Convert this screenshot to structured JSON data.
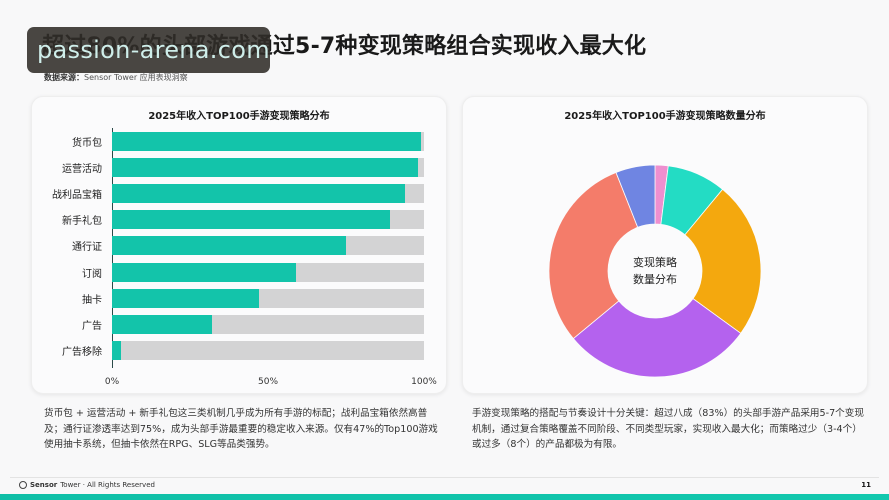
{
  "header": {
    "title": "超过80%的头部游戏通过5-7种变现策略组合实现收入最大化",
    "source_label": "数据来源：",
    "source_value": "Sensor Tower 应用表现洞察"
  },
  "watermark": {
    "text": "passion-arena.com"
  },
  "colors": {
    "bar_fill": "#13c4aa",
    "bar_bg": "#d3d3d4",
    "accent_strip": "#12c8ae"
  },
  "left_card": {
    "title": "2025年收入TOP100手游变现策略分布",
    "ticks": [
      "0%",
      "50%",
      "100%"
    ],
    "description": "货币包 + 运营活动 + 新手礼包这三类机制几乎成为所有手游的标配；战利品宝箱依然高普及；通行证渗透率达到75%，成为头部手游最重要的稳定收入来源。仅有47%的Top100游戏使用抽卡系统，但抽卡依然在RPG、SLG等品类强势。"
  },
  "right_card": {
    "title": "2025年收入TOP100手游变现策略数量分布",
    "center_line1": "变现策略",
    "center_line2": "数量分布",
    "description": "手游变现策略的搭配与节奏设计十分关键：超过八成（83%）的头部手游产品采用5-7个变现机制，通过复合策略覆盖不同阶段、不同类型玩家，实现收入最大化；而策略过少（3-4个）或过多（8个）的产品都极为有限。"
  },
  "footer": {
    "brand": "Sensor",
    "brand_rest": "Tower · All Rights Reserved",
    "page": "11"
  },
  "chart_data": [
    {
      "type": "bar",
      "orientation": "horizontal",
      "title": "2025年收入TOP100手游变现策略分布",
      "categories": [
        "货币包",
        "运营活动",
        "战利品宝箱",
        "新手礼包",
        "通行证",
        "订阅",
        "抽卡",
        "广告",
        "广告移除"
      ],
      "values": [
        99,
        98,
        94,
        89,
        75,
        59,
        47,
        32,
        3
      ],
      "unit": "%",
      "xlim": [
        0,
        100
      ],
      "xticks": [
        "0%",
        "50%",
        "100%"
      ],
      "background_track": true,
      "colors": {
        "fill": "#13c4aa",
        "track": "#d3d3d4"
      },
      "grid": false,
      "legend": "none"
    },
    {
      "type": "pie",
      "variant": "donut",
      "title": "2025年收入TOP100手游变现策略数量分布",
      "center_label": "变现策略数量分布",
      "segments": [
        {
          "color": "#ee8fcf",
          "value": 2
        },
        {
          "color": "#23dcc4",
          "value": 9
        },
        {
          "color": "#f4a80e",
          "value": 24
        },
        {
          "color": "#b462ee",
          "value": 29
        },
        {
          "color": "#f47c6a",
          "value": 30
        },
        {
          "color": "#6f85e2",
          "value": 6
        }
      ],
      "start_angle": "top, clockwise",
      "legend": "none"
    }
  ]
}
